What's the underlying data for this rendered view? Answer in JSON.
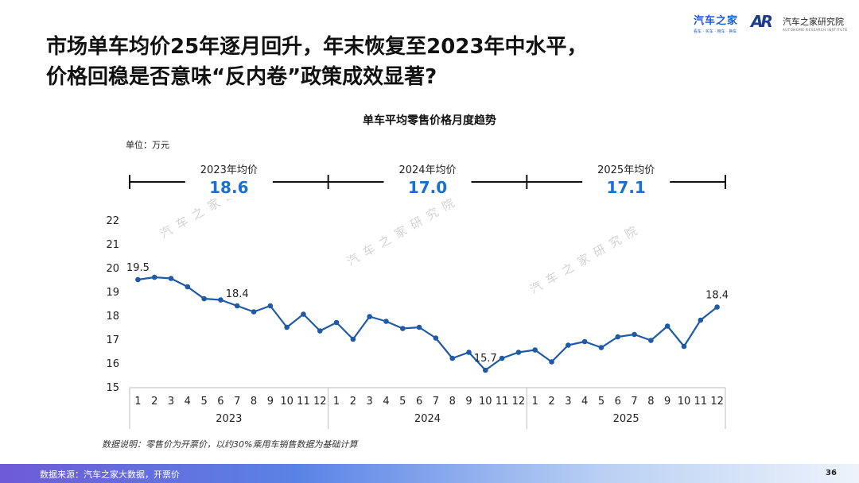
{
  "headline": {
    "line1": "市场单车均价25年逐月回升，年末恢复至2023年中水平，",
    "line2": "价格回稳是否意味“反内卷”政策成效显著?"
  },
  "logos": {
    "brand": "汽车之家",
    "brand_sub": "看车 · 买车 · 用车 · 换车",
    "institute_mark": "AR",
    "institute": "汽车之家研究院",
    "institute_en": "AUTOHOME RESEARCH INSTITUTE"
  },
  "watermark": "汽车之家研究院",
  "unit": "单位：万元",
  "footnote": "数据说明：零售价为开票价，以约30%乘用车销售数据为基础计算",
  "source": "数据来源：汽车之家大数据，开票价",
  "page_number": "36",
  "colors": {
    "line": "#1f5aa6",
    "highlight": "#1a6fd1",
    "bar_start": "#6e5bd6"
  },
  "chart_data": {
    "type": "line",
    "title": "单车平均零售价格月度趋势",
    "ylabel": "万元",
    "xlabel": "",
    "ylim": [
      15,
      22
    ],
    "yticks": [
      15,
      16,
      17,
      18,
      19,
      20,
      21,
      22
    ],
    "grid": false,
    "x": [
      "1",
      "2",
      "3",
      "4",
      "5",
      "6",
      "7",
      "8",
      "9",
      "10",
      "11",
      "12",
      "1",
      "2",
      "3",
      "4",
      "5",
      "6",
      "7",
      "8",
      "9",
      "10",
      "11",
      "12",
      "1",
      "2",
      "3",
      "4",
      "5",
      "6",
      "7",
      "8",
      "9",
      "10",
      "11",
      "12"
    ],
    "groups": [
      {
        "label": "2023",
        "count": 12
      },
      {
        "label": "2024",
        "count": 12
      },
      {
        "label": "2025",
        "count": 12
      }
    ],
    "series": [
      {
        "name": "单车平均零售价格",
        "values": [
          19.5,
          19.6,
          19.55,
          19.2,
          18.7,
          18.65,
          18.4,
          18.15,
          18.4,
          17.5,
          18.05,
          17.35,
          17.7,
          17.0,
          17.95,
          17.75,
          17.45,
          17.5,
          17.05,
          16.2,
          16.45,
          15.7,
          16.2,
          16.45,
          16.55,
          16.05,
          16.75,
          16.9,
          16.65,
          17.1,
          17.2,
          16.95,
          17.55,
          16.7,
          17.8,
          18.35
        ]
      }
    ],
    "data_labels": [
      {
        "index": 0,
        "text": "19.5"
      },
      {
        "index": 6,
        "text": "18.4"
      },
      {
        "index": 21,
        "text": "15.7"
      },
      {
        "index": 35,
        "text": "18.4"
      }
    ],
    "annotations": [
      {
        "label": "2023年均价",
        "value": "18.6"
      },
      {
        "label": "2024年均价",
        "value": "17.0"
      },
      {
        "label": "2025年均价",
        "value": "17.1"
      }
    ]
  }
}
